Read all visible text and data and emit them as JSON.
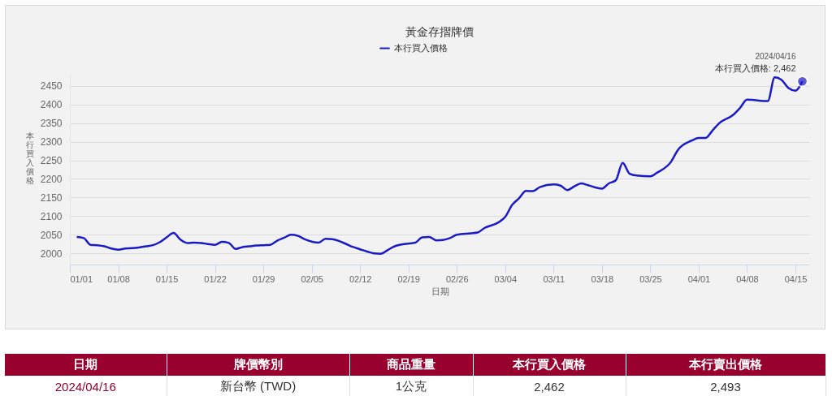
{
  "chart_data": {
    "type": "line",
    "title": "黃金存摺牌價",
    "xlabel": "日期",
    "ylabel": "本行買入價格",
    "x": [
      "2024-01-02",
      "2024-01-03",
      "2024-01-04",
      "2024-01-05",
      "2024-01-06",
      "2024-01-07",
      "2024-01-08",
      "2024-01-09",
      "2024-01-10",
      "2024-01-11",
      "2024-01-12",
      "2024-01-13",
      "2024-01-14",
      "2024-01-15",
      "2024-01-16",
      "2024-01-17",
      "2024-01-18",
      "2024-01-19",
      "2024-01-20",
      "2024-01-21",
      "2024-01-22",
      "2024-01-23",
      "2024-01-24",
      "2024-01-25",
      "2024-01-26",
      "2024-01-27",
      "2024-01-28",
      "2024-01-29",
      "2024-01-30",
      "2024-01-31",
      "2024-02-01",
      "2024-02-02",
      "2024-02-03",
      "2024-02-04",
      "2024-02-06",
      "2024-02-07",
      "2024-02-08",
      "2024-02-09",
      "2024-02-10",
      "2024-02-11",
      "2024-02-12",
      "2024-02-13",
      "2024-02-14",
      "2024-02-15",
      "2024-02-16",
      "2024-02-17",
      "2024-02-18",
      "2024-02-20",
      "2024-02-21",
      "2024-02-22",
      "2024-02-23",
      "2024-02-24",
      "2024-02-25",
      "2024-02-26",
      "2024-02-28",
      "2024-02-29",
      "2024-03-01",
      "2024-03-03",
      "2024-03-04",
      "2024-03-05",
      "2024-03-06",
      "2024-03-07",
      "2024-03-08",
      "2024-03-09",
      "2024-03-11",
      "2024-03-12",
      "2024-03-13",
      "2024-03-14",
      "2024-03-15",
      "2024-03-16",
      "2024-03-18",
      "2024-03-19",
      "2024-03-20",
      "2024-03-21",
      "2024-03-22",
      "2024-03-23",
      "2024-03-25",
      "2024-03-26",
      "2024-03-28",
      "2024-03-29",
      "2024-03-31",
      "2024-04-01",
      "2024-04-02",
      "2024-04-03",
      "2024-04-04",
      "2024-04-06",
      "2024-04-07",
      "2024-04-08",
      "2024-04-11",
      "2024-04-12",
      "2024-04-13",
      "2024-04-14",
      "2024-04-15",
      "2024-04-16"
    ],
    "series": [
      {
        "name": "本行買入價格",
        "color": "#1a1ac8",
        "values": [
          2044,
          2041,
          2023,
          2022,
          2019,
          2013,
          2010,
          2013,
          2014,
          2016,
          2019,
          2022,
          2030,
          2043,
          2055,
          2037,
          2028,
          2029,
          2028,
          2025,
          2023,
          2031,
          2028,
          2012,
          2017,
          2019,
          2021,
          2022,
          2023,
          2034,
          2042,
          2050,
          2047,
          2038,
          2029,
          2039,
          2038,
          2033,
          2025,
          2017,
          2011,
          2005,
          2000,
          1999,
          2009,
          2019,
          2024,
          2029,
          2043,
          2044,
          2035,
          2036,
          2041,
          2050,
          2054,
          2056,
          2068,
          2083,
          2098,
          2130,
          2148,
          2168,
          2167,
          2178,
          2185,
          2182,
          2170,
          2180,
          2188,
          2183,
          2174,
          2188,
          2196,
          2243,
          2214,
          2209,
          2207,
          2217,
          2246,
          2278,
          2303,
          2310,
          2310,
          2330,
          2350,
          2372,
          2391,
          2413,
          2409,
          2473,
          2466,
          2444,
          2437,
          2462
        ]
      }
    ],
    "xlim": [
      "2024-01-01",
      "2024-04-17"
    ],
    "xticks": [
      {
        "value": "2024-01-01",
        "label": "01/01"
      },
      {
        "value": "2024-01-08",
        "label": "01/08"
      },
      {
        "value": "2024-01-15",
        "label": "01/15"
      },
      {
        "value": "2024-01-22",
        "label": "01/22"
      },
      {
        "value": "2024-01-29",
        "label": "01/29"
      },
      {
        "value": "2024-02-05",
        "label": "02/05"
      },
      {
        "value": "2024-02-12",
        "label": "02/12"
      },
      {
        "value": "2024-02-19",
        "label": "02/19"
      },
      {
        "value": "2024-02-26",
        "label": "02/26"
      },
      {
        "value": "2024-03-04",
        "label": "03/04"
      },
      {
        "value": "2024-03-11",
        "label": "03/11"
      },
      {
        "value": "2024-03-18",
        "label": "03/18"
      },
      {
        "value": "2024-03-25",
        "label": "03/25"
      },
      {
        "value": "2024-04-01",
        "label": "04/01"
      },
      {
        "value": "2024-04-08",
        "label": "04/08"
      },
      {
        "value": "2024-04-15",
        "label": "04/15"
      }
    ],
    "ylim": [
      1970,
      2480
    ],
    "yticks": [
      2000,
      2050,
      2100,
      2150,
      2200,
      2250,
      2300,
      2350,
      2400,
      2450
    ],
    "grid": "y",
    "legend": "top",
    "annotations": [
      {
        "text": "2024/04/16",
        "x": "2024-04-16",
        "y": 2462
      },
      {
        "text": "本行買入價格: 2,462",
        "x": "2024-04-16",
        "y": 2462
      },
      "日期",
      "牌價幣別",
      "商品重量",
      "本行買入價格",
      "本行賣出價格",
      "2024/04/16",
      "新台幣 (TWD)",
      "1公克",
      "2,462",
      "2,493"
    ]
  }
}
